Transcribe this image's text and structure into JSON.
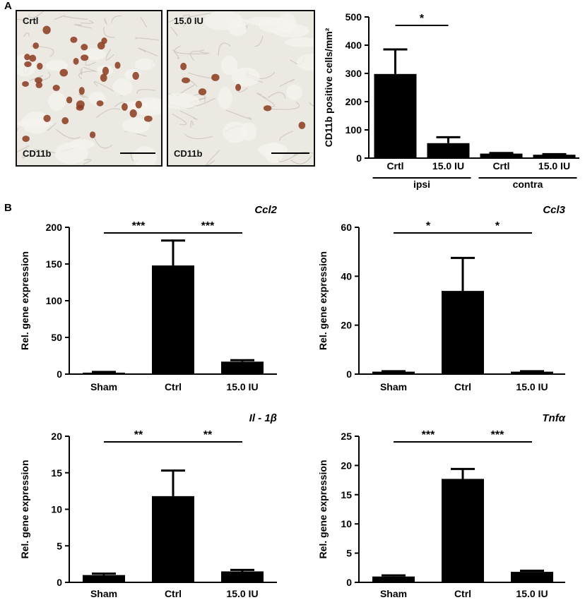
{
  "panel_a_label": "A",
  "panel_b_label": "B",
  "micrographs": [
    {
      "top_label": "Crtl",
      "bottom_label": "CD11b"
    },
    {
      "top_label": "15.0 IU",
      "bottom_label": "CD11b"
    }
  ],
  "colors": {
    "bar": "#000000",
    "stain": "#8b3a1e",
    "tissue": "#ece9e2"
  },
  "chart_data": [
    {
      "type": "bar",
      "title": "",
      "ylabel": "CD11b positive cells/mm²",
      "ylim": [
        0,
        500
      ],
      "yticks": [
        0,
        100,
        200,
        300,
        400,
        500
      ],
      "categories": [
        "Crtl",
        "15.0 IU",
        "Crtl",
        "15.0 IU"
      ],
      "groups": [
        {
          "label": "ipsi",
          "categories": [
            0,
            1
          ]
        },
        {
          "label": "contra",
          "categories": [
            2,
            3
          ]
        }
      ],
      "values": [
        298,
        53,
        16,
        12
      ],
      "errors": [
        87,
        21,
        2,
        2
      ],
      "significance": [
        {
          "from": 0,
          "to": 1,
          "label": "*"
        }
      ]
    },
    {
      "type": "bar",
      "title": "Ccl2",
      "ylabel": "Rel. gene expression",
      "ylim": [
        0,
        200
      ],
      "yticks": [
        0,
        50,
        100,
        150,
        200
      ],
      "categories": [
        "Sham",
        "Ctrl",
        "15.0 IU"
      ],
      "values": [
        2,
        148,
        17
      ],
      "errors": [
        1,
        34,
        2
      ],
      "significance": [
        {
          "from": 0,
          "to": 1,
          "label": "***"
        },
        {
          "from": 1,
          "to": 2,
          "label": "***"
        }
      ]
    },
    {
      "type": "bar",
      "title": "Ccl3",
      "ylabel": "Rel. gene expression",
      "ylim": [
        0,
        60
      ],
      "yticks": [
        0,
        20,
        40,
        60
      ],
      "categories": [
        "Sham",
        "Ctrl",
        "15.0 IU"
      ],
      "values": [
        1,
        34,
        1
      ],
      "errors": [
        0.2,
        13.5,
        0.2
      ],
      "significance": [
        {
          "from": 0,
          "to": 1,
          "label": "*"
        },
        {
          "from": 1,
          "to": 2,
          "label": "*"
        }
      ]
    },
    {
      "type": "bar",
      "title": "Il - 1β",
      "ylabel": "Rel. gene expression",
      "ylim": [
        0,
        20
      ],
      "yticks": [
        0,
        5,
        10,
        15,
        20
      ],
      "categories": [
        "Sham",
        "Ctrl",
        "15.0 IU"
      ],
      "values": [
        1,
        11.8,
        1.5
      ],
      "errors": [
        0.2,
        3.5,
        0.2
      ],
      "significance": [
        {
          "from": 0,
          "to": 1,
          "label": "**"
        },
        {
          "from": 1,
          "to": 2,
          "label": "**"
        }
      ]
    },
    {
      "type": "bar",
      "title": "Tnfα",
      "ylabel": "Rel. gene expression",
      "ylim": [
        0,
        25
      ],
      "yticks": [
        0,
        5,
        10,
        15,
        20,
        25
      ],
      "categories": [
        "Sham",
        "Ctrl",
        "15.0 IU"
      ],
      "values": [
        1,
        17.7,
        1.8
      ],
      "errors": [
        0.2,
        1.7,
        0.2
      ],
      "significance": [
        {
          "from": 0,
          "to": 1,
          "label": "***"
        },
        {
          "from": 1,
          "to": 2,
          "label": "***"
        }
      ]
    }
  ]
}
